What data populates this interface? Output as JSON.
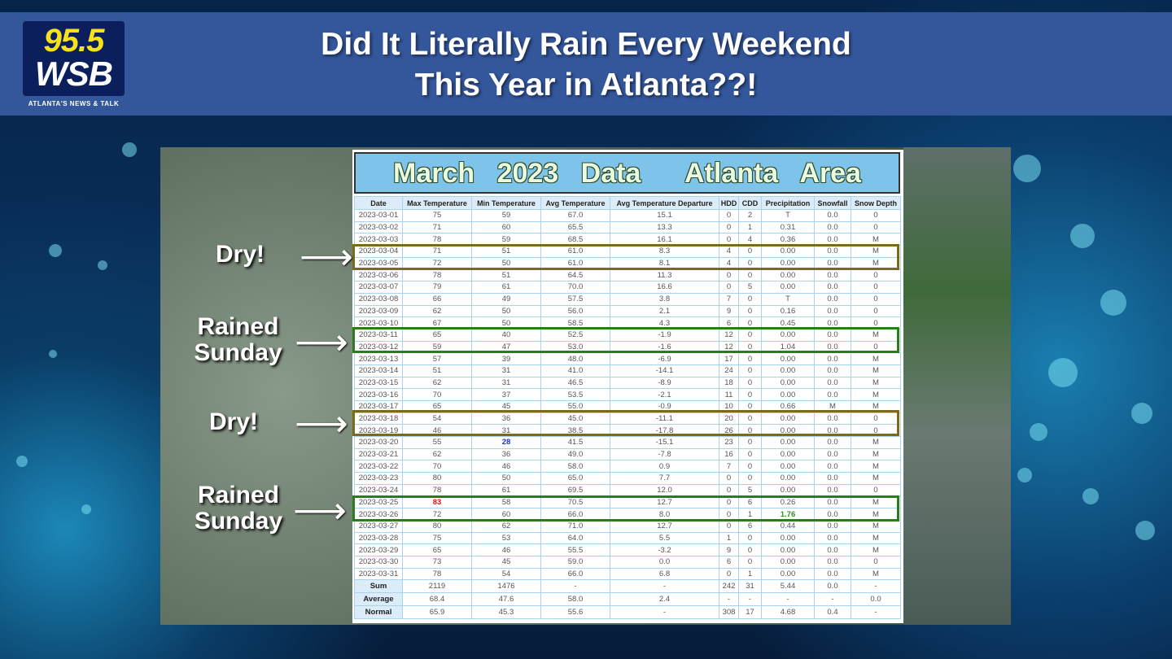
{
  "header": {
    "title_line1": "Did It Literally Rain Every Weekend",
    "title_line2": "This Year in Atlanta??!"
  },
  "logo": {
    "frequency": "95.5",
    "call_sign": "WSB",
    "tagline": "ATLANTA'S NEWS & TALK"
  },
  "table": {
    "title": "March 2023 Data  Atlanta Area",
    "columns": [
      "Date",
      "Max Temperature",
      "Min Temperature",
      "Avg Temperature",
      "Avg Temperature Departure",
      "HDD",
      "CDD",
      "Precipitation",
      "Snowfall",
      "Snow Depth"
    ],
    "rows": [
      [
        "2023-03-01",
        "75",
        "59",
        "67.0",
        "15.1",
        "0",
        "2",
        "T",
        "0.0",
        "0"
      ],
      [
        "2023-03-02",
        "71",
        "60",
        "65.5",
        "13.3",
        "0",
        "1",
        "0.31",
        "0.0",
        "0"
      ],
      [
        "2023-03-03",
        "78",
        "59",
        "68.5",
        "16.1",
        "0",
        "4",
        "0.36",
        "0.0",
        "M"
      ],
      [
        "2023-03-04",
        "71",
        "51",
        "61.0",
        "8.3",
        "4",
        "0",
        "0.00",
        "0.0",
        "M"
      ],
      [
        "2023-03-05",
        "72",
        "50",
        "61.0",
        "8.1",
        "4",
        "0",
        "0.00",
        "0.0",
        "M"
      ],
      [
        "2023-03-06",
        "78",
        "51",
        "64.5",
        "11.3",
        "0",
        "0",
        "0.00",
        "0.0",
        "0"
      ],
      [
        "2023-03-07",
        "79",
        "61",
        "70.0",
        "16.6",
        "0",
        "5",
        "0.00",
        "0.0",
        "0"
      ],
      [
        "2023-03-08",
        "66",
        "49",
        "57.5",
        "3.8",
        "7",
        "0",
        "T",
        "0.0",
        "0"
      ],
      [
        "2023-03-09",
        "62",
        "50",
        "56.0",
        "2.1",
        "9",
        "0",
        "0.16",
        "0.0",
        "0"
      ],
      [
        "2023-03-10",
        "67",
        "50",
        "58.5",
        "4.3",
        "6",
        "0",
        "0.45",
        "0.0",
        "0"
      ],
      [
        "2023-03-11",
        "65",
        "40",
        "52.5",
        "-1.9",
        "12",
        "0",
        "0.00",
        "0.0",
        "M"
      ],
      [
        "2023-03-12",
        "59",
        "47",
        "53.0",
        "-1.6",
        "12",
        "0",
        "1.04",
        "0.0",
        "0"
      ],
      [
        "2023-03-13",
        "57",
        "39",
        "48.0",
        "-6.9",
        "17",
        "0",
        "0.00",
        "0.0",
        "M"
      ],
      [
        "2023-03-14",
        "51",
        "31",
        "41.0",
        "-14.1",
        "24",
        "0",
        "0.00",
        "0.0",
        "M"
      ],
      [
        "2023-03-15",
        "62",
        "31",
        "46.5",
        "-8.9",
        "18",
        "0",
        "0.00",
        "0.0",
        "M"
      ],
      [
        "2023-03-16",
        "70",
        "37",
        "53.5",
        "-2.1",
        "11",
        "0",
        "0.00",
        "0.0",
        "M"
      ],
      [
        "2023-03-17",
        "65",
        "45",
        "55.0",
        "-0.9",
        "10",
        "0",
        "0.66",
        "M",
        "M"
      ],
      [
        "2023-03-18",
        "54",
        "36",
        "45.0",
        "-11.1",
        "20",
        "0",
        "0.00",
        "0.0",
        "0"
      ],
      [
        "2023-03-19",
        "46",
        "31",
        "38.5",
        "-17.8",
        "26",
        "0",
        "0.00",
        "0.0",
        "0"
      ],
      [
        "2023-03-20",
        "55",
        "28",
        "41.5",
        "-15.1",
        "23",
        "0",
        "0.00",
        "0.0",
        "M"
      ],
      [
        "2023-03-21",
        "62",
        "36",
        "49.0",
        "-7.8",
        "16",
        "0",
        "0.00",
        "0.0",
        "M"
      ],
      [
        "2023-03-22",
        "70",
        "46",
        "58.0",
        "0.9",
        "7",
        "0",
        "0.00",
        "0.0",
        "M"
      ],
      [
        "2023-03-23",
        "80",
        "50",
        "65.0",
        "7.7",
        "0",
        "0",
        "0.00",
        "0.0",
        "M"
      ],
      [
        "2023-03-24",
        "78",
        "61",
        "69.5",
        "12.0",
        "0",
        "5",
        "0.00",
        "0.0",
        "0"
      ],
      [
        "2023-03-25",
        "83",
        "58",
        "70.5",
        "12.7",
        "0",
        "6",
        "0.26",
        "0.0",
        "M"
      ],
      [
        "2023-03-26",
        "72",
        "60",
        "66.0",
        "8.0",
        "0",
        "1",
        "1.76",
        "0.0",
        "M"
      ],
      [
        "2023-03-27",
        "80",
        "62",
        "71.0",
        "12.7",
        "0",
        "6",
        "0.44",
        "0.0",
        "M"
      ],
      [
        "2023-03-28",
        "75",
        "53",
        "64.0",
        "5.5",
        "1",
        "0",
        "0.00",
        "0.0",
        "M"
      ],
      [
        "2023-03-29",
        "65",
        "46",
        "55.5",
        "-3.2",
        "9",
        "0",
        "0.00",
        "0.0",
        "M"
      ],
      [
        "2023-03-30",
        "73",
        "45",
        "59.0",
        "0.0",
        "6",
        "0",
        "0.00",
        "0.0",
        "0"
      ],
      [
        "2023-03-31",
        "78",
        "54",
        "66.0",
        "6.8",
        "0",
        "1",
        "0.00",
        "0.0",
        "M"
      ]
    ],
    "summary": [
      [
        "Sum",
        "2119",
        "1476",
        "-",
        "-",
        "242",
        "31",
        "5.44",
        "0.0",
        "-"
      ],
      [
        "Average",
        "68.4",
        "47.6",
        "58.0",
        "2.4",
        "-",
        "-",
        "-",
        "-",
        "0.0"
      ],
      [
        "Normal",
        "65.9",
        "45.3",
        "55.6",
        "-",
        "308",
        "17",
        "4.68",
        "0.4",
        "-"
      ]
    ],
    "highlights": {
      "record_high": {
        "row": 24,
        "col": 1,
        "color": "#e0141e"
      },
      "record_low": {
        "row": 19,
        "col": 2,
        "color": "#1f2fe0"
      },
      "record_precip": {
        "row": 25,
        "col": 7,
        "color": "#2f8f1f"
      }
    }
  },
  "annotations": [
    {
      "label": "Dry!",
      "kind": "dry"
    },
    {
      "label": "Rained Sunday",
      "kind": "rain"
    },
    {
      "label": "Dry!",
      "kind": "dry"
    },
    {
      "label": "Rained Sunday",
      "kind": "rain"
    }
  ],
  "colors": {
    "header_bar": "#33579a",
    "dry_box": "#7a6a1e",
    "rain_box": "#2e7a1e"
  }
}
